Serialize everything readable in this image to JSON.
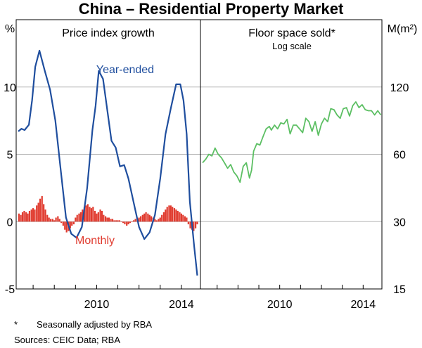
{
  "chart_data": {
    "title": "China – Residential Property Market",
    "footnote_marker": "*",
    "footnote": "Seasonally adjusted by RBA",
    "sources": "Sources:   CEIC Data; RBA",
    "panels": [
      {
        "title": "Price index growth",
        "type": "line+bar",
        "y_unit": "%",
        "ylim": [
          -5,
          15
        ],
        "yticks": [
          -5,
          0,
          5,
          10
        ],
        "xlim": [
          2006.2,
          2014.9
        ],
        "xticks": [
          2010,
          2014
        ],
        "series": [
          {
            "name": "Year-ended",
            "type": "line",
            "color": "#1f4e9e",
            "x": [
              2006.3,
              2006.45,
              2006.6,
              2006.8,
              2006.95,
              2007.1,
              2007.3,
              2007.55,
              2007.8,
              2008.05,
              2008.3,
              2008.55,
              2008.8,
              2009.05,
              2009.3,
              2009.55,
              2009.8,
              2009.95,
              2010.1,
              2010.3,
              2010.5,
              2010.7,
              2010.9,
              2011.1,
              2011.3,
              2011.5,
              2011.75,
              2012.0,
              2012.25,
              2012.5,
              2012.75,
              2013.0,
              2013.25,
              2013.5,
              2013.75,
              2013.95,
              2014.1,
              2014.25,
              2014.4,
              2014.6,
              2014.75
            ],
            "values": [
              6.7,
              6.9,
              6.8,
              7.2,
              9.0,
              11.5,
              12.7,
              11.2,
              9.8,
              7.5,
              3.9,
              0.3,
              -0.9,
              -1.2,
              -0.4,
              2.5,
              6.8,
              8.6,
              11.2,
              10.6,
              8.3,
              6.0,
              5.5,
              4.1,
              4.2,
              3.2,
              1.4,
              -0.4,
              -1.3,
              -0.8,
              0.5,
              3.2,
              6.5,
              8.4,
              10.2,
              10.2,
              9.0,
              6.5,
              1.5,
              -1.8,
              -4.0
            ]
          },
          {
            "name": "Monthly",
            "type": "bar",
            "color": "#e03a2e",
            "x": [
              2006.33,
              2006.42,
              2006.5,
              2006.58,
              2006.67,
              2006.75,
              2006.83,
              2006.92,
              2007.0,
              2007.08,
              2007.17,
              2007.25,
              2007.33,
              2007.42,
              2007.5,
              2007.58,
              2007.67,
              2007.75,
              2007.83,
              2007.92,
              2008.0,
              2008.08,
              2008.17,
              2008.25,
              2008.33,
              2008.42,
              2008.5,
              2008.58,
              2008.67,
              2008.75,
              2008.83,
              2008.92,
              2009.0,
              2009.08,
              2009.17,
              2009.25,
              2009.33,
              2009.42,
              2009.5,
              2009.58,
              2009.67,
              2009.75,
              2009.83,
              2009.92,
              2010.0,
              2010.08,
              2010.17,
              2010.25,
              2010.33,
              2010.42,
              2010.5,
              2010.58,
              2010.67,
              2010.75,
              2010.83,
              2010.92,
              2011.0,
              2011.08,
              2011.17,
              2011.25,
              2011.33,
              2011.42,
              2011.5,
              2011.58,
              2011.67,
              2011.75,
              2011.83,
              2011.92,
              2012.0,
              2012.08,
              2012.17,
              2012.25,
              2012.33,
              2012.42,
              2012.5,
              2012.58,
              2012.67,
              2012.75,
              2012.83,
              2012.92,
              2013.0,
              2013.08,
              2013.17,
              2013.25,
              2013.33,
              2013.42,
              2013.5,
              2013.58,
              2013.67,
              2013.75,
              2013.83,
              2013.92,
              2014.0,
              2014.08,
              2014.17,
              2014.25,
              2014.33,
              2014.42,
              2014.5,
              2014.58,
              2014.67,
              2014.75
            ],
            "values": [
              0.6,
              0.5,
              0.7,
              0.8,
              0.7,
              0.6,
              0.8,
              0.9,
              1.0,
              0.9,
              1.2,
              1.4,
              1.7,
              1.9,
              1.3,
              0.9,
              0.5,
              0.3,
              0.2,
              0.2,
              0.1,
              0.3,
              0.4,
              0.2,
              -0.1,
              -0.3,
              -0.6,
              -0.8,
              -0.7,
              -0.5,
              -0.3,
              -0.2,
              0.3,
              0.5,
              0.6,
              0.7,
              0.9,
              1.1,
              1.2,
              1.3,
              1.1,
              1.0,
              1.1,
              0.8,
              0.6,
              0.7,
              0.9,
              0.8,
              0.5,
              0.4,
              0.3,
              0.3,
              0.2,
              0.2,
              0.1,
              0.1,
              0.1,
              0.1,
              0.0,
              -0.1,
              -0.2,
              -0.3,
              -0.2,
              -0.1,
              0.0,
              0.1,
              0.2,
              0.2,
              0.3,
              0.4,
              0.5,
              0.6,
              0.7,
              0.6,
              0.5,
              0.4,
              0.3,
              0.2,
              0.1,
              0.2,
              0.3,
              0.5,
              0.7,
              0.9,
              1.1,
              1.2,
              1.2,
              1.1,
              1.0,
              0.9,
              0.8,
              0.7,
              0.6,
              0.5,
              0.4,
              0.3,
              -0.2,
              -0.5,
              -0.6,
              -0.7,
              -0.5,
              -0.2
            ]
          }
        ],
        "labels": {
          "year_ended": "Year-ended",
          "monthly": "Monthly"
        }
      },
      {
        "title": "Floor space sold*",
        "subtitle": "Log scale",
        "type": "line",
        "y_unit": "M(m²)",
        "scale": "log",
        "ylim": [
          15,
          240
        ],
        "yticks": [
          15,
          30,
          60,
          120
        ],
        "xlim": [
          2006.2,
          2014.9
        ],
        "xticks": [
          2010,
          2014
        ],
        "series": [
          {
            "name": "Floor space sold",
            "color": "#5cbf63",
            "x": [
              2006.3,
              2006.45,
              2006.6,
              2006.75,
              2006.9,
              2007.05,
              2007.2,
              2007.35,
              2007.5,
              2007.65,
              2007.8,
              2007.95,
              2008.1,
              2008.25,
              2008.4,
              2008.55,
              2008.65,
              2008.75,
              2008.9,
              2009.05,
              2009.2,
              2009.35,
              2009.5,
              2009.6,
              2009.75,
              2009.9,
              2010.05,
              2010.2,
              2010.35,
              2010.5,
              2010.65,
              2010.8,
              2010.95,
              2011.1,
              2011.25,
              2011.4,
              2011.55,
              2011.7,
              2011.85,
              2012.0,
              2012.15,
              2012.3,
              2012.45,
              2012.6,
              2012.75,
              2012.9,
              2013.05,
              2013.2,
              2013.35,
              2013.5,
              2013.65,
              2013.8,
              2013.95,
              2014.1,
              2014.25,
              2014.4,
              2014.55,
              2014.7,
              2014.85
            ],
            "values": [
              55,
              57,
              60,
              59,
              64,
              60,
              58,
              55,
              52,
              54,
              50,
              48,
              45,
              53,
              55,
              47,
              51,
              62,
              67,
              66,
              72,
              78,
              80,
              77,
              81,
              78,
              83,
              82,
              86,
              74,
              81,
              81,
              78,
              75,
              87,
              84,
              76,
              84,
              73,
              82,
              87,
              84,
              96,
              95,
              90,
              87,
              96,
              97,
              89,
              99,
              103,
              97,
              100,
              95,
              94,
              94,
              90,
              94,
              90
            ]
          }
        ]
      }
    ]
  }
}
